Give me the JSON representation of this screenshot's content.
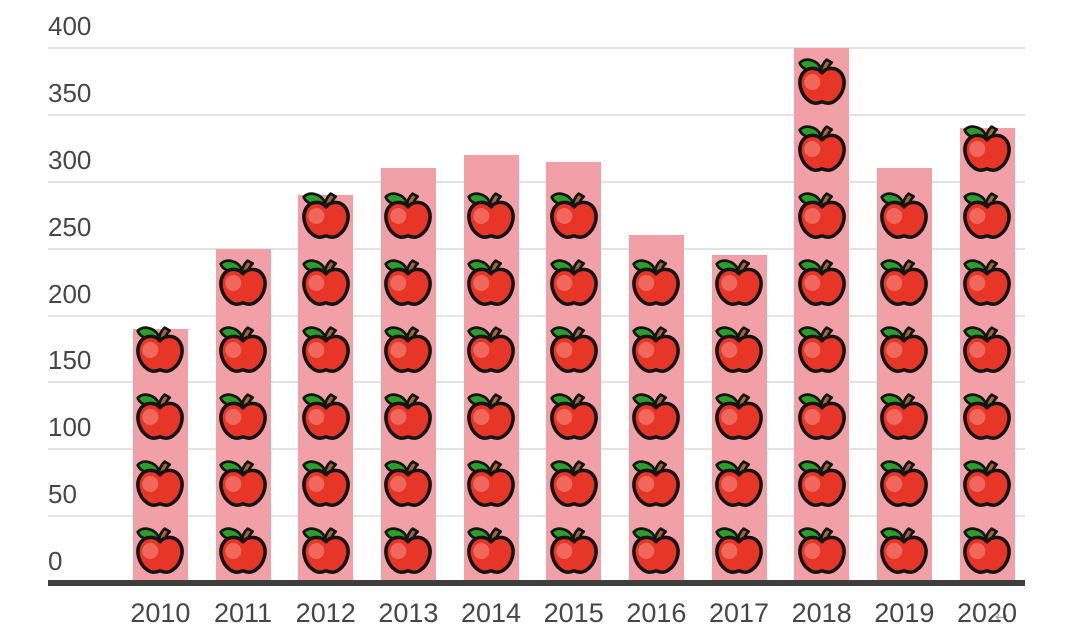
{
  "chart_data": {
    "type": "bar",
    "title": "",
    "xlabel": "",
    "ylabel": "",
    "categories": [
      "2010",
      "2011",
      "2012",
      "2013",
      "2014",
      "2015",
      "2016",
      "2017",
      "2018",
      "2019",
      "2020"
    ],
    "values": [
      190,
      250,
      290,
      310,
      320,
      315,
      260,
      245,
      400,
      310,
      340
    ],
    "apples_per_bar": [
      4,
      5,
      6,
      6,
      6,
      6,
      5,
      5,
      8,
      6,
      7
    ],
    "apple_unit": 50,
    "ylim": [
      0,
      400
    ],
    "ytick_interval": 50,
    "ytick_labels": [
      "0",
      "50",
      "100",
      "150",
      "200",
      "250",
      "300",
      "350",
      "400"
    ],
    "grid": true,
    "legend": "none",
    "icon": "apple-icon",
    "colors": {
      "bar": "#F2A0A8",
      "apple_body": "#E73527",
      "apple_highlight": "#F0685C",
      "apple_leaf": "#2AA02A",
      "apple_stem": "#9C6B3C",
      "apple_outline": "#141414",
      "gridline": "#E3E3E3",
      "axis_line": "#3E3E3E",
      "tick_label": "#464646"
    }
  },
  "watermark": {
    "glyph": "↩"
  }
}
